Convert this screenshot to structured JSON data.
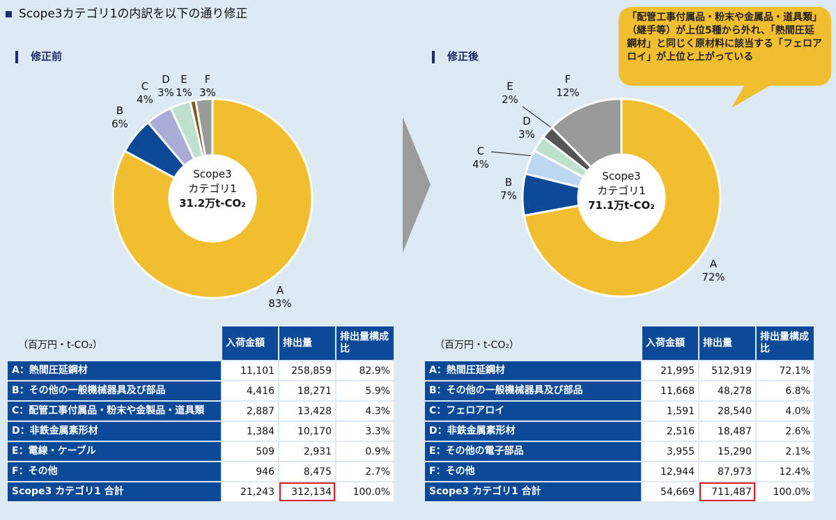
{
  "title": "Scope3カテゴリ1の内訳を以下の通り修正",
  "callout": "「配管工事付属品・粉末や金属品・道具類」（継手等）が上位5種から外れ、「熱間圧延鋼材」と同じく原材料に該当する「フェロアロイ」が上位と上がっている",
  "colors": {
    "A": "#f0be2f",
    "B": "#0c4a98",
    "bg": "#dde9f3"
  },
  "chart_data": [
    {
      "type": "pie",
      "section": "修正前",
      "center": [
        "Scope3",
        "カテゴリ1",
        "31.2万t-CO₂"
      ],
      "categories": [
        "A",
        "B",
        "C",
        "D",
        "E",
        "F"
      ],
      "values": [
        82.9,
        5.9,
        4.3,
        3.3,
        0.9,
        2.7
      ],
      "labels": [
        "83%",
        "6%",
        "4%",
        "3%",
        "1%",
        "3%"
      ],
      "colors": [
        "#f0be2f",
        "#0c4a98",
        "#a9acd6",
        "#bde0cf",
        "#7b5a1f",
        "#9a9a9a"
      ]
    },
    {
      "type": "pie",
      "section": "修正後",
      "center": [
        "Scope3",
        "カテゴリ1",
        "71.1万t-CO₂"
      ],
      "categories": [
        "A",
        "B",
        "C",
        "D",
        "E",
        "F"
      ],
      "values": [
        72.1,
        6.8,
        4.0,
        2.6,
        2.1,
        12.4
      ],
      "labels": [
        "72%",
        "7%",
        "4%",
        "3%",
        "2%",
        "12%"
      ],
      "colors": [
        "#f0be2f",
        "#0c4a98",
        "#bdd7f2",
        "#bde0cf",
        "#555555",
        "#9a9a9a"
      ]
    }
  ],
  "tables": [
    {
      "unit": "（百万円・t-CO₂）",
      "headers": [
        "入荷金額",
        "排出量",
        "排出量構成比"
      ],
      "rows": [
        [
          "A：熱間圧延鋼材",
          "11,101",
          "258,859",
          "82.9%"
        ],
        [
          "B：その他の一般機械器具及び部品",
          "4,416",
          "18,271",
          "5.9%"
        ],
        [
          "C：配管工事付属品・粉末や金製品・道具類",
          "2,887",
          "13,428",
          "4.3%"
        ],
        [
          "D：非鉄金属素形材",
          "1,384",
          "10,170",
          "3.3%"
        ],
        [
          "E：電線・ケーブル",
          "509",
          "2,931",
          "0.9%"
        ],
        [
          "F：その他",
          "946",
          "8,475",
          "2.7%"
        ],
        [
          "Scope3 カテゴリ1 合計",
          "21,243",
          "312,134",
          "100.0%"
        ]
      ]
    },
    {
      "unit": "（百万円・t-CO₂）",
      "headers": [
        "入荷金額",
        "排出量",
        "排出量構成比"
      ],
      "rows": [
        [
          "A：熱間圧延鋼材",
          "21,995",
          "512,919",
          "72.1%"
        ],
        [
          "B：その他の一般機械器具及び部品",
          "11,668",
          "48,278",
          "6.8%"
        ],
        [
          "C：フェロアロイ",
          "1,591",
          "28,540",
          "4.0%"
        ],
        [
          "D：非鉄金属素形材",
          "2,516",
          "18,487",
          "2.6%"
        ],
        [
          "E：その他の電子部品",
          "3,955",
          "15,290",
          "2.1%"
        ],
        [
          "F：その他",
          "12,944",
          "87,973",
          "12.4%"
        ],
        [
          "Scope3 カテゴリ1 合計",
          "54,669",
          "711,487",
          "100.0%"
        ]
      ]
    }
  ]
}
